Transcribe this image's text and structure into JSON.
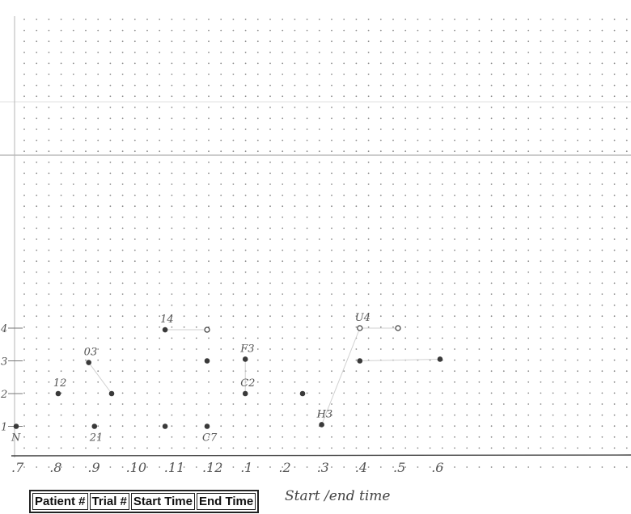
{
  "chart_data": {
    "type": "scatter",
    "title": "",
    "xlabel": "",
    "ylabel": "",
    "x_ticks": [
      ".7",
      ".8",
      ".9",
      ".10",
      ".11",
      ".12",
      ".1",
      ".2",
      ".3",
      ".4",
      ".5",
      ".6"
    ],
    "y_ticks": [
      "1",
      "2",
      "3",
      "4"
    ],
    "grid": "dotted",
    "points": [
      {
        "x": 7.0,
        "y": 1.0,
        "label": "N",
        "style": "filled"
      },
      {
        "x": 8.1,
        "y": 2.0,
        "label": "12",
        "style": "filled"
      },
      {
        "x": 8.9,
        "y": 2.95,
        "label": "03",
        "style": "filled"
      },
      {
        "x": 9.5,
        "y": 2.0,
        "label": "",
        "style": "filled"
      },
      {
        "x": 9.05,
        "y": 1.0,
        "label": "21",
        "style": "filled"
      },
      {
        "x": 10.9,
        "y": 3.95,
        "label": "14",
        "style": "filled"
      },
      {
        "x": 10.9,
        "y": 1.0,
        "label": "",
        "style": "filled"
      },
      {
        "x": 12.0,
        "y": 3.95,
        "label": "",
        "style": "open"
      },
      {
        "x": 12.0,
        "y": 3.0,
        "label": "",
        "style": "filled"
      },
      {
        "x": 12.0,
        "y": 1.0,
        "label": "C7",
        "style": "filled"
      },
      {
        "x": 13.0,
        "y": 3.05,
        "label": "F3",
        "style": "filled"
      },
      {
        "x": 13.0,
        "y": 2.0,
        "label": "C2",
        "style": "filled"
      },
      {
        "x": 14.5,
        "y": 2.0,
        "label": "",
        "style": "filled"
      },
      {
        "x": 15.0,
        "y": 1.05,
        "label": "H3",
        "style": "filled"
      },
      {
        "x": 16.0,
        "y": 4.0,
        "label": "U4",
        "style": "open"
      },
      {
        "x": 16.0,
        "y": 3.0,
        "label": "",
        "style": "filled"
      },
      {
        "x": 17.0,
        "y": 4.0,
        "label": "",
        "style": "open"
      },
      {
        "x": 18.1,
        "y": 3.05,
        "label": "",
        "style": "filled"
      }
    ]
  },
  "table": {
    "headers": [
      "Patient #",
      "Trial #",
      "Start Time",
      "End Time"
    ]
  },
  "note": "Start /end time"
}
